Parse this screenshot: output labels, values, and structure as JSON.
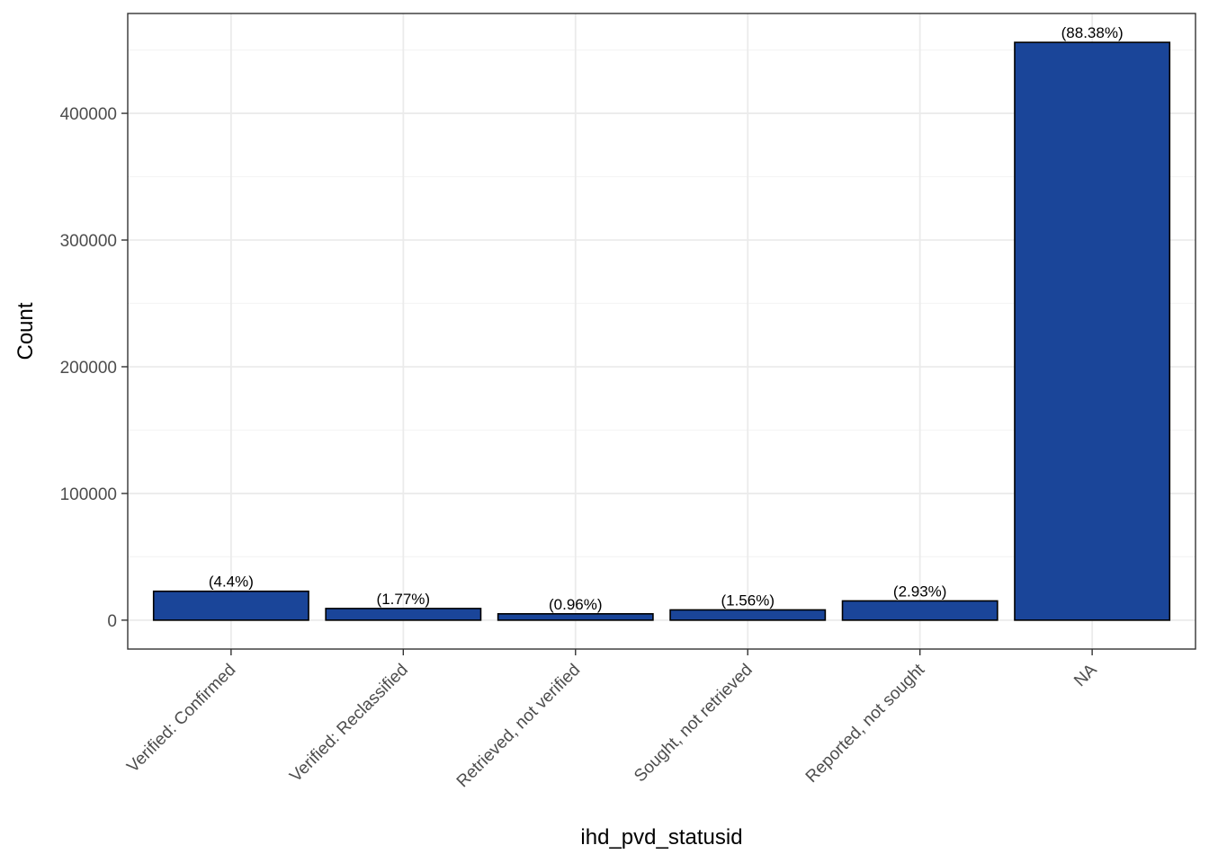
{
  "colors": {
    "bar_fill": "#1a4599",
    "bar_stroke": "#000000",
    "grid_major": "#ebebeb",
    "grid_minor": "#f5f5f5",
    "panel_border": "#333333",
    "tick_text": "#4d4d4d",
    "background": "#ffffff"
  },
  "chart_data": {
    "type": "bar",
    "title": "",
    "xlabel": "ihd_pvd_statusid",
    "ylabel": "Count",
    "categories": [
      "Verified: Confirmed",
      "Verified: Reclassified",
      "Retrieved, not verified",
      "Sought, not retrieved",
      "Reported, not sought",
      "NA"
    ],
    "values": [
      22800,
      9200,
      5000,
      8100,
      15200,
      456000
    ],
    "labels": [
      "(4.4%)",
      "(1.77%)",
      "(0.96%)",
      "(1.56%)",
      "(2.93%)",
      "(88.38%)"
    ],
    "ylim": [
      -22800,
      478800
    ],
    "yticks": [
      0,
      100000,
      200000,
      300000,
      400000
    ],
    "ytick_labels": [
      "0",
      "100000",
      "200000",
      "300000",
      "400000"
    ],
    "grid": true,
    "legend": "none"
  }
}
